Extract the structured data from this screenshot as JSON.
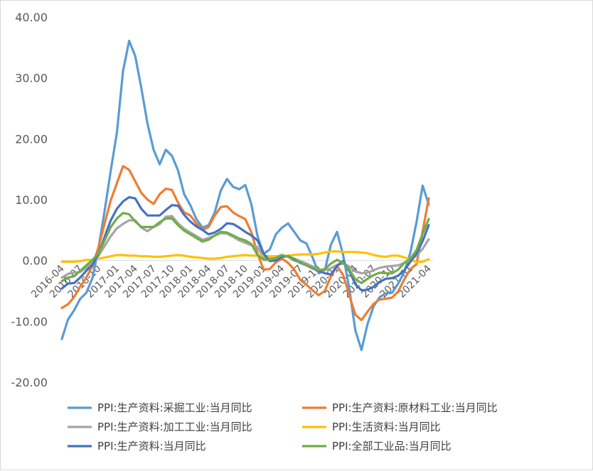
{
  "chart_data": {
    "type": "line",
    "title": "",
    "xlabel": "",
    "ylabel": "",
    "ylim": [
      -20,
      40
    ],
    "yticks": [
      "40.00",
      "30.00",
      "20.00",
      "10.00",
      "0.00",
      "-10.00",
      "-20.00"
    ],
    "xtick_labels": [
      "2016-04",
      "2016-07",
      "2016-10",
      "2017-01",
      "2017-04",
      "2017-07",
      "2017-10",
      "2018-01",
      "2018-04",
      "2018-07",
      "2018-10",
      "2019-01",
      "2019-04",
      "2019-07",
      "2019-10",
      "2020-01",
      "2020-04",
      "2020-07",
      "2020-10",
      "2021-01",
      "2021-04"
    ],
    "x": [
      "2016-04",
      "2016-05",
      "2016-06",
      "2016-07",
      "2016-08",
      "2016-09",
      "2016-10",
      "2016-11",
      "2016-12",
      "2017-01",
      "2017-02",
      "2017-03",
      "2017-04",
      "2017-05",
      "2017-06",
      "2017-07",
      "2017-08",
      "2017-09",
      "2017-10",
      "2017-11",
      "2017-12",
      "2018-01",
      "2018-02",
      "2018-03",
      "2018-04",
      "2018-05",
      "2018-06",
      "2018-07",
      "2018-08",
      "2018-09",
      "2018-10",
      "2018-11",
      "2018-12",
      "2019-01",
      "2019-02",
      "2019-03",
      "2019-04",
      "2019-05",
      "2019-06",
      "2019-07",
      "2019-08",
      "2019-09",
      "2019-10",
      "2019-11",
      "2019-12",
      "2020-01",
      "2020-02",
      "2020-03",
      "2020-04",
      "2020-05",
      "2020-06",
      "2020-07",
      "2020-08",
      "2020-09",
      "2020-10",
      "2020-11",
      "2020-12",
      "2021-01",
      "2021-02",
      "2021-03",
      "2021-04"
    ],
    "grid": false,
    "legend_position": "bottom",
    "series": [
      {
        "name": "PPI:生产资料:采掘工业:当月同比",
        "color": "#5b9bd5",
        "values": [
          -12.9,
          -9.7,
          -8.2,
          -6.3,
          -5.3,
          -2.9,
          2.1,
          8.2,
          14.8,
          21.0,
          31.1,
          36.1,
          33.6,
          28.3,
          22.5,
          18.2,
          15.8,
          18.2,
          17.2,
          14.8,
          10.9,
          9.1,
          6.8,
          5.4,
          5.8,
          7.9,
          11.5,
          13.4,
          12.1,
          11.7,
          12.4,
          9.2,
          4.0,
          1.1,
          1.8,
          4.3,
          5.4,
          6.1,
          4.7,
          3.3,
          2.8,
          0.5,
          -2.1,
          -1.6,
          2.6,
          4.7,
          0.9,
          -4.6,
          -11.5,
          -14.7,
          -10.4,
          -7.5,
          -6.0,
          -5.4,
          -5.3,
          -3.8,
          -1.9,
          1.3,
          6.3,
          12.3,
          9.2
        ]
      },
      {
        "name": "PPI:生产资料:原材料工业:当月同比",
        "color": "#ed7d31",
        "values": [
          -7.8,
          -7.2,
          -6.0,
          -4.3,
          -2.8,
          -0.9,
          2.2,
          6.1,
          9.9,
          12.7,
          15.5,
          14.9,
          13.0,
          11.1,
          10.0,
          9.3,
          10.9,
          11.8,
          11.6,
          9.5,
          7.9,
          7.4,
          6.1,
          5.0,
          5.5,
          7.4,
          8.8,
          8.9,
          7.9,
          7.3,
          6.8,
          4.6,
          1.1,
          -1.5,
          -1.4,
          -0.3,
          0.3,
          -0.4,
          -1.5,
          -3.2,
          -4.0,
          -4.9,
          -5.7,
          -5.0,
          -2.6,
          -0.9,
          -2.4,
          -5.7,
          -8.9,
          -9.8,
          -8.4,
          -7.1,
          -6.4,
          -6.3,
          -6.1,
          -5.1,
          -3.1,
          -1.4,
          -0.6,
          4.8,
          10.2
        ]
      },
      {
        "name": "PPI:生产资料:加工工业:当月同比",
        "color": "#a5a5a5",
        "values": [
          -2.8,
          -2.2,
          -2.0,
          -1.9,
          -1.2,
          -0.4,
          0.8,
          2.4,
          4.0,
          5.3,
          6.0,
          6.6,
          6.6,
          5.4,
          4.8,
          5.5,
          6.0,
          7.2,
          7.3,
          6.1,
          5.2,
          4.6,
          4.0,
          3.4,
          3.7,
          4.1,
          4.5,
          4.4,
          3.9,
          3.3,
          2.9,
          2.5,
          2.2,
          0.4,
          0.3,
          0.6,
          0.9,
          0.6,
          0.3,
          -0.1,
          -0.5,
          -1.0,
          -1.5,
          -1.6,
          -1.3,
          -0.7,
          -0.5,
          -1.0,
          -1.8,
          -2.1,
          -2.0,
          -1.6,
          -1.2,
          -1.0,
          -0.9,
          -0.8,
          -0.4,
          0.2,
          0.8,
          1.9,
          3.5
        ]
      },
      {
        "name": "PPI:生活资料:当月同比",
        "color": "#ffc000",
        "values": [
          -0.2,
          -0.2,
          -0.2,
          -0.1,
          0.1,
          0.1,
          0.3,
          0.5,
          0.7,
          0.9,
          0.9,
          0.8,
          0.8,
          0.7,
          0.7,
          0.6,
          0.6,
          0.7,
          0.8,
          0.9,
          0.8,
          0.6,
          0.5,
          0.4,
          0.3,
          0.3,
          0.4,
          0.6,
          0.7,
          0.8,
          0.9,
          0.8,
          0.8,
          0.8,
          0.7,
          0.7,
          0.7,
          0.8,
          0.9,
          1.0,
          1.0,
          1.0,
          1.1,
          1.3,
          1.5,
          1.5,
          1.4,
          1.4,
          1.4,
          1.3,
          1.2,
          0.9,
          0.7,
          0.6,
          0.8,
          0.8,
          0.5,
          0.2,
          -0.3,
          -0.2,
          0.2
        ]
      },
      {
        "name": "PPI:生产资料:当月同比",
        "color": "#4472c4",
        "values": [
          -4.6,
          -3.8,
          -3.7,
          -2.8,
          -1.7,
          -0.7,
          1.1,
          3.9,
          6.6,
          8.5,
          9.7,
          10.4,
          10.2,
          8.5,
          7.4,
          7.4,
          7.4,
          8.3,
          9.1,
          9.0,
          7.5,
          6.4,
          5.6,
          5.0,
          4.3,
          4.6,
          5.2,
          6.1,
          6.0,
          5.4,
          4.7,
          4.1,
          3.3,
          1.1,
          -0.1,
          0.0,
          0.6,
          0.7,
          0.2,
          -0.4,
          -0.8,
          -1.3,
          -1.7,
          -2.1,
          -2.3,
          -0.9,
          -0.1,
          -1.7,
          -3.9,
          -4.9,
          -4.8,
          -4.3,
          -3.5,
          -3.0,
          -2.9,
          -2.5,
          -1.6,
          -0.2,
          1.1,
          3.2,
          5.8
        ]
      },
      {
        "name": "PPI:全部工业品:当月同比",
        "color": "#70ad47",
        "values": [
          -3.4,
          -2.8,
          -2.6,
          -1.7,
          -0.8,
          0.1,
          1.2,
          3.3,
          5.5,
          6.9,
          7.8,
          7.6,
          6.4,
          5.5,
          5.5,
          5.5,
          6.3,
          6.9,
          6.9,
          5.8,
          4.9,
          4.3,
          3.7,
          3.1,
          3.4,
          4.1,
          4.7,
          4.6,
          4.1,
          3.6,
          3.3,
          2.7,
          0.9,
          0.1,
          0.1,
          0.4,
          0.9,
          0.6,
          0.0,
          -0.3,
          -0.8,
          -1.2,
          -1.6,
          -1.4,
          -0.5,
          0.1,
          -0.4,
          -1.5,
          -3.1,
          -3.7,
          -3.0,
          -2.4,
          -2.0,
          -2.1,
          -2.1,
          -1.5,
          -0.4,
          0.3,
          1.7,
          4.4,
          6.8
        ]
      }
    ]
  }
}
